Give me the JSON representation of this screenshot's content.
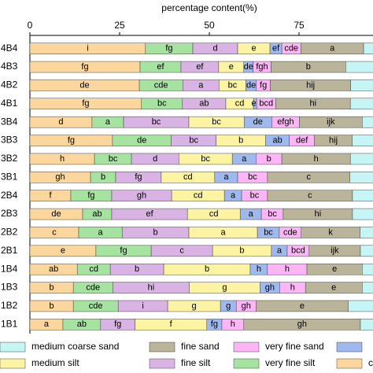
{
  "chart_data": {
    "type": "stacked-bar-horizontal",
    "title": "percentage content(%)",
    "categories": [
      "4B4",
      "4B3",
      "4B2",
      "4B1",
      "3B4",
      "3B3",
      "3B2",
      "3B1",
      "2B4",
      "2B3",
      "2B2",
      "2B1",
      "1B4",
      "1B3",
      "1B2",
      "1B1"
    ],
    "xlim": [
      0,
      100
    ],
    "xticks": [
      0,
      25,
      50,
      75
    ],
    "series": [
      {
        "name": "clay",
        "color": "#fcd79d",
        "values": [
          32.2,
          30.7,
          30.5,
          31.1,
          17.3,
          23.0,
          18.0,
          16.9,
          11.4,
          14.7,
          13.6,
          18.4,
          13.2,
          12.1,
          12.1,
          9.2
        ],
        "labels": [
          "i",
          "fg",
          "de",
          "fg",
          "d",
          "fg",
          "h",
          "gh",
          "f",
          "de",
          "c",
          "e",
          "ab",
          "b",
          "b",
          "a"
        ]
      },
      {
        "name": "very fine silt",
        "color": "#a6e3a0",
        "values": [
          13.2,
          11.4,
          12.1,
          11.4,
          8.8,
          16.4,
          10.3,
          7.0,
          11.4,
          8.1,
          12.1,
          15.4,
          9.2,
          11.0,
          12.5,
          10.5
        ],
        "labels": [
          "fg",
          "ef",
          "cde",
          "bc",
          "a",
          "de",
          "bc",
          "b",
          "fg",
          "ab",
          "a",
          "fg",
          "cd",
          "cde",
          "cde",
          "ab"
        ]
      },
      {
        "name": "fine silt",
        "color": "#d9b3e3",
        "values": [
          12.5,
          10.5,
          10.1,
          12.1,
          18.2,
          12.5,
          13.2,
          12.7,
          16.7,
          21.1,
          18.6,
          17.1,
          14.9,
          21.3,
          13.8,
          9.6
        ],
        "labels": [
          "d",
          "ef",
          "a",
          "ab",
          "bc",
          "bc",
          "d",
          "fg",
          "gh",
          "ef",
          "b",
          "c",
          "b",
          "hi",
          "i",
          "fg"
        ]
      },
      {
        "name": "medium silt",
        "color": "#fdf4a3",
        "values": [
          9.0,
          7.0,
          7.5,
          7.7,
          15.4,
          13.8,
          14.9,
          14.9,
          14.7,
          14.7,
          19.1,
          16.4,
          24.1,
          19.7,
          14.7,
          20.0
        ],
        "labels": [
          "e",
          "e",
          "bc",
          "cd",
          "bc",
          "b",
          "bc",
          "cd",
          "cd",
          "cd",
          "a",
          "b",
          "b",
          "g",
          "g",
          "f"
        ]
      },
      {
        "name": null,
        "color": "#9fb9ee",
        "values": [
          3.3,
          2.6,
          2.9,
          0.9,
          7.7,
          6.6,
          6.6,
          6.4,
          4.8,
          5.9,
          6.1,
          4.4,
          4.8,
          5.5,
          4.4,
          4.2
        ],
        "labels": [
          "ef",
          "de",
          "de",
          "ef",
          "de",
          "ab",
          "a",
          "a",
          "a",
          "a",
          "bc",
          "a",
          "h",
          "gh",
          "g",
          "fg"
        ]
      },
      {
        "name": "very fine sand",
        "color": "#fdb6f5",
        "values": [
          5.3,
          5.0,
          3.9,
          5.3,
          7.7,
          7.0,
          7.2,
          8.3,
          7.2,
          6.1,
          6.1,
          6.1,
          11.0,
          7.2,
          5.5,
          6.1
        ],
        "labels": [
          "cde",
          "fgh",
          "fg",
          "bcd",
          "efgh",
          "def",
          "b",
          "bc",
          "bc",
          "bc",
          "cde",
          "bcd",
          "h",
          "h",
          "gh",
          "h"
        ]
      },
      {
        "name": "fine sand",
        "color": "#bab49a",
        "values": [
          17.5,
          20.8,
          22.4,
          20.8,
          17.5,
          10.5,
          19.1,
          23.0,
          23.7,
          19.3,
          16.4,
          14.3,
          15.4,
          15.8,
          25.7,
          32.5
        ],
        "labels": [
          "a",
          "b",
          "hij",
          "hi",
          "ijk",
          "hij",
          "h",
          "c",
          "c",
          "hi",
          "k",
          "ijk",
          "e",
          "e",
          "e",
          "gh"
        ]
      },
      {
        "name": "medium coarse sand",
        "color": "#c6f5f5",
        "values": [
          7.0,
          11.8,
          10.7,
          10.7,
          7.5,
          10.1,
          10.7,
          10.7,
          10.1,
          10.1,
          7.9,
          7.9,
          7.5,
          7.5,
          11.4,
          7.9
        ]
      }
    ]
  }
}
